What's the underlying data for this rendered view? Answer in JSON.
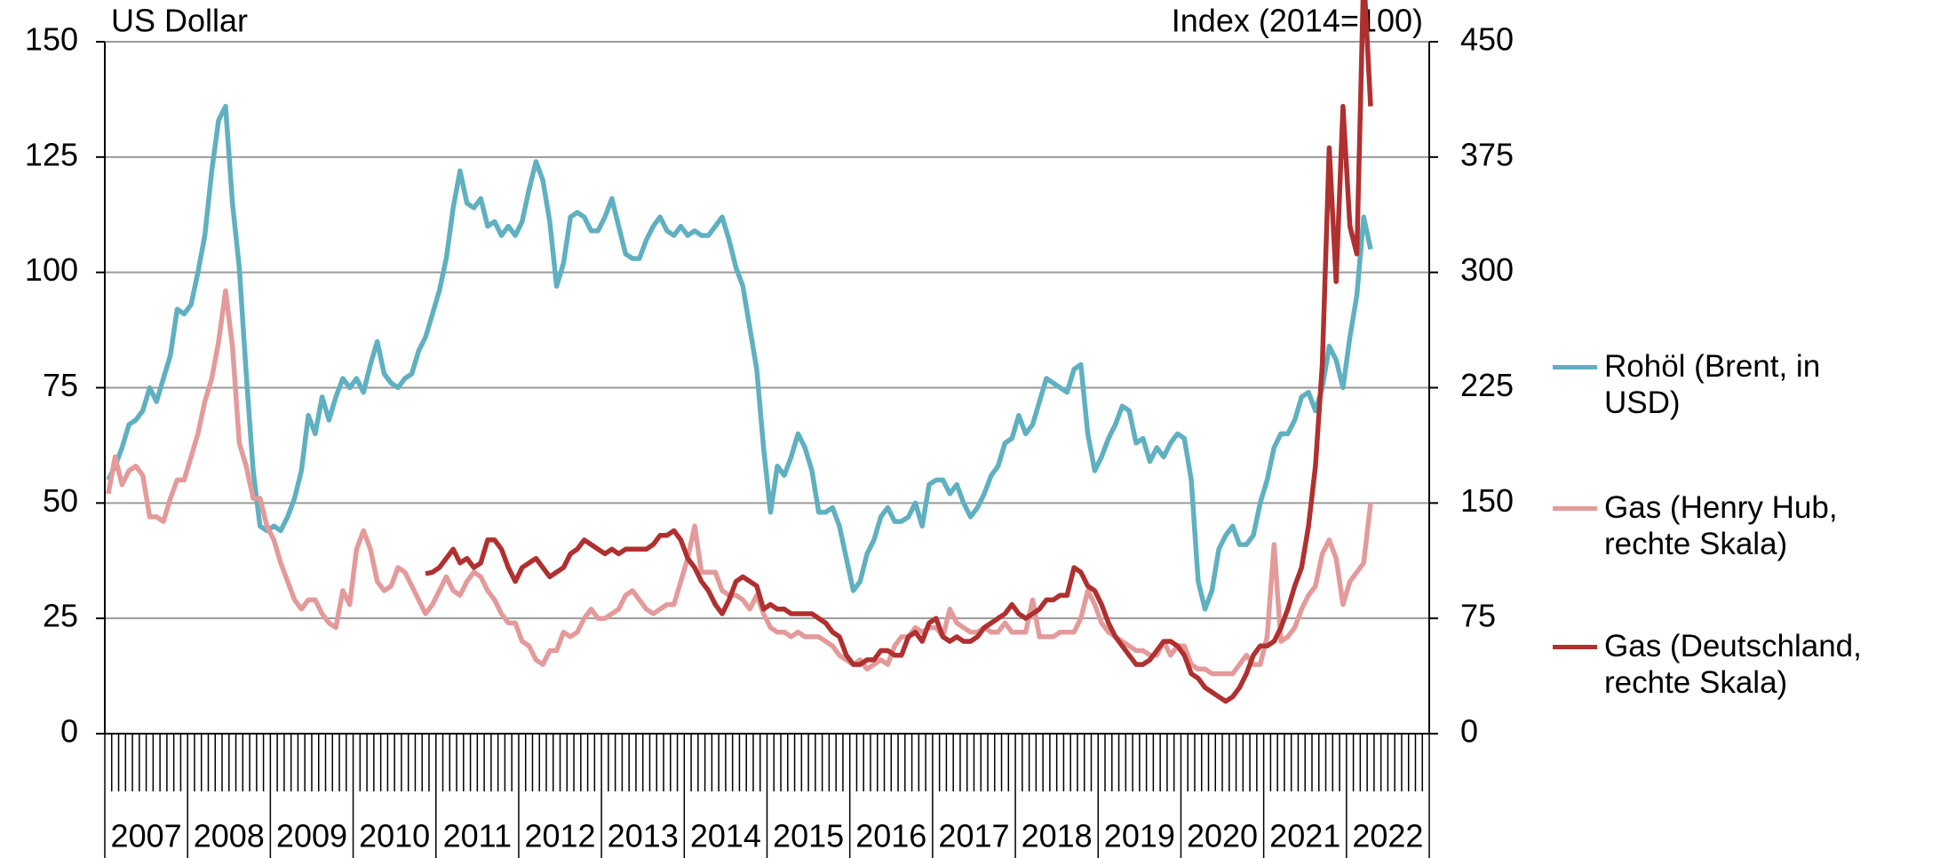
{
  "chart_data": {
    "type": "line",
    "y_label": "US Dollar",
    "y2_label": "Index (2014=100)",
    "categories": [
      "2007",
      null,
      null,
      null,
      null,
      null,
      null,
      null,
      null,
      null,
      null,
      null,
      "2008",
      null,
      null,
      null,
      null,
      null,
      null,
      null,
      null,
      null,
      null,
      null,
      "2009",
      null,
      null,
      null,
      null,
      null,
      null,
      null,
      null,
      null,
      null,
      null,
      "2010",
      null,
      null,
      null,
      null,
      null,
      null,
      null,
      null,
      null,
      null,
      null,
      "2011",
      null,
      null,
      null,
      null,
      null,
      null,
      null,
      null,
      null,
      null,
      null,
      "2012",
      null,
      null,
      null,
      null,
      null,
      null,
      null,
      null,
      null,
      null,
      null,
      "2013",
      null,
      null,
      null,
      null,
      null,
      null,
      null,
      null,
      null,
      null,
      null,
      "2014",
      null,
      null,
      null,
      null,
      null,
      null,
      null,
      null,
      null,
      null,
      null,
      "2015",
      null,
      null,
      null,
      null,
      null,
      null,
      null,
      null,
      null,
      null,
      null,
      "2016",
      null,
      null,
      null,
      null,
      null,
      null,
      null,
      null,
      null,
      null,
      null,
      "2017",
      null,
      null,
      null,
      null,
      null,
      null,
      null,
      null,
      null,
      null,
      null,
      "2018",
      null,
      null,
      null,
      null,
      null,
      null,
      null,
      null,
      null,
      null,
      null,
      "2019",
      null,
      null,
      null,
      null,
      null,
      null,
      null,
      null,
      null,
      null,
      null,
      "2020",
      null,
      null,
      null,
      null,
      null,
      null,
      null,
      null,
      null,
      null,
      null,
      "2021",
      null,
      null,
      null,
      null,
      null,
      null,
      null,
      null,
      null,
      null,
      null,
      "2022",
      null,
      null,
      null
    ],
    "ylim": [
      0,
      150
    ],
    "yticks": [
      0,
      25,
      50,
      75,
      100,
      125,
      150
    ],
    "y2lim": [
      0,
      450
    ],
    "y2ticks": [
      0,
      75,
      150,
      225,
      300,
      375,
      450
    ],
    "grid": true,
    "legend": "right",
    "series": [
      {
        "name": "Rohöl (Brent, in USD)",
        "color": "#5fb0c0",
        "values": [
          55,
          58,
          62,
          67,
          68,
          70,
          75,
          72,
          77,
          82,
          92,
          91,
          93,
          100,
          108,
          122,
          133,
          136,
          115,
          101,
          78,
          57,
          45,
          44,
          45,
          44,
          47,
          51,
          57,
          69,
          65,
          73,
          68,
          73,
          77,
          75,
          77,
          74,
          80,
          85,
          78,
          76,
          75,
          77,
          78,
          83,
          86,
          91,
          96,
          103,
          114,
          122,
          115,
          114,
          116,
          110,
          111,
          108,
          110,
          108,
          111,
          118,
          124,
          120,
          111,
          97,
          102,
          112,
          113,
          112,
          109,
          109,
          112,
          116,
          110,
          104,
          103,
          103,
          107,
          110,
          112,
          109,
          108,
          110,
          108,
          109,
          108,
          108,
          110,
          112,
          107,
          101,
          97,
          88,
          79,
          62,
          48,
          58,
          56,
          60,
          65,
          62,
          57,
          48,
          48,
          49,
          45,
          38,
          31,
          33,
          39,
          42,
          47,
          49,
          46,
          46,
          47,
          50,
          45,
          54,
          55,
          55,
          52,
          54,
          50,
          47,
          49,
          52,
          56,
          58,
          63,
          64,
          69,
          65,
          67,
          72,
          77,
          76,
          75,
          74,
          79,
          80,
          65,
          57,
          60,
          64,
          67,
          71,
          70,
          63,
          64,
          59,
          62,
          60,
          63,
          65,
          64,
          55,
          33,
          27,
          31,
          40,
          43,
          45,
          41,
          41,
          43,
          50,
          55,
          62,
          65,
          65,
          68,
          73,
          74,
          70,
          75,
          84,
          81,
          75,
          86,
          95,
          112,
          105
        ]
      },
      {
        "name": "Gas (Henry Hub, rechte Skala)",
        "color": "#e49a9a",
        "axis": "y2",
        "values": [
          156,
          180,
          162,
          171,
          174,
          168,
          141,
          141,
          138,
          153,
          165,
          165,
          180,
          195,
          216,
          231,
          255,
          288,
          252,
          189,
          174,
          153,
          153,
          135,
          126,
          111,
          99,
          87,
          81,
          87,
          87,
          78,
          72,
          69,
          93,
          84,
          120,
          132,
          120,
          99,
          93,
          96,
          108,
          105,
          96,
          87,
          78,
          84,
          93,
          102,
          93,
          90,
          99,
          105,
          102,
          93,
          87,
          78,
          72,
          72,
          60,
          57,
          48,
          45,
          54,
          54,
          66,
          63,
          66,
          75,
          81,
          75,
          75,
          78,
          81,
          90,
          93,
          87,
          81,
          78,
          81,
          84,
          84,
          99,
          114,
          135,
          105,
          105,
          105,
          93,
          90,
          90,
          87,
          81,
          90,
          78,
          69,
          66,
          66,
          63,
          66,
          63,
          63,
          63,
          60,
          57,
          51,
          48,
          45,
          48,
          42,
          45,
          48,
          45,
          57,
          63,
          63,
          69,
          66,
          69,
          69,
          63,
          81,
          72,
          69,
          66,
          66,
          69,
          66,
          66,
          72,
          66,
          66,
          66,
          87,
          63,
          63,
          63,
          66,
          66,
          66,
          75,
          93,
          84,
          72,
          66,
          63,
          60,
          57,
          54,
          54,
          51,
          51,
          60,
          51,
          57,
          57,
          45,
          42,
          42,
          39,
          39,
          39,
          39,
          45,
          51,
          45,
          45,
          63,
          123,
          60,
          63,
          69,
          81,
          90,
          96,
          117,
          126,
          114,
          84,
          99,
          105,
          111,
          150
        ]
      },
      {
        "name": "Gas (Deutschland, rechte Skala)",
        "color": "#b03030",
        "axis": "y2",
        "values": [
          null,
          null,
          null,
          null,
          null,
          null,
          null,
          null,
          null,
          null,
          null,
          null,
          null,
          null,
          null,
          null,
          null,
          null,
          null,
          null,
          null,
          null,
          null,
          null,
          null,
          null,
          null,
          null,
          null,
          null,
          null,
          null,
          null,
          null,
          null,
          null,
          null,
          null,
          null,
          null,
          null,
          null,
          null,
          null,
          null,
          null,
          104,
          105,
          108,
          114,
          120,
          111,
          114,
          108,
          111,
          126,
          126,
          120,
          108,
          99,
          108,
          111,
          114,
          108,
          102,
          105,
          108,
          117,
          120,
          126,
          123,
          120,
          117,
          120,
          117,
          120,
          120,
          120,
          120,
          123,
          129,
          129,
          132,
          126,
          114,
          108,
          99,
          93,
          84,
          78,
          87,
          99,
          102,
          99,
          96,
          81,
          84,
          81,
          81,
          78,
          78,
          78,
          78,
          75,
          72,
          66,
          63,
          51,
          45,
          45,
          48,
          48,
          54,
          54,
          51,
          51,
          63,
          66,
          60,
          72,
          75,
          63,
          60,
          63,
          60,
          60,
          63,
          69,
          72,
          75,
          78,
          84,
          78,
          75,
          78,
          81,
          87,
          87,
          90,
          90,
          108,
          105,
          96,
          93,
          84,
          72,
          63,
          57,
          51,
          45,
          45,
          48,
          54,
          60,
          60,
          57,
          51,
          39,
          36,
          30,
          27,
          24,
          21,
          24,
          30,
          39,
          51,
          57,
          57,
          60,
          69,
          81,
          96,
          108,
          135,
          174,
          240,
          381,
          294,
          408,
          330,
          312,
          495,
          408
        ]
      }
    ]
  }
}
